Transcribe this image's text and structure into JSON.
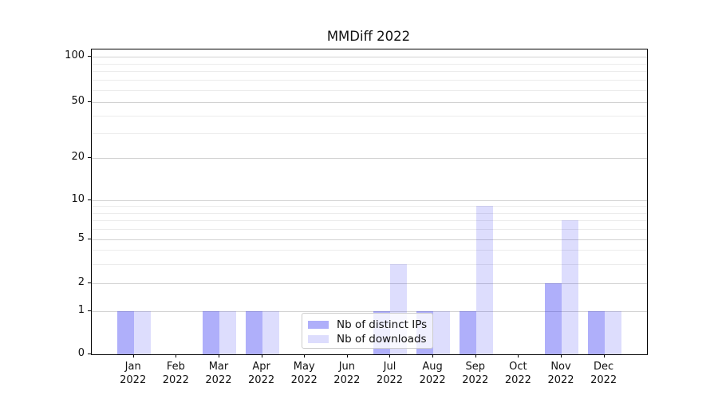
{
  "chart_data": {
    "type": "bar",
    "title": "MMDiff 2022",
    "categories": [
      {
        "month": "Jan",
        "year": "2022"
      },
      {
        "month": "Feb",
        "year": "2022"
      },
      {
        "month": "Mar",
        "year": "2022"
      },
      {
        "month": "Apr",
        "year": "2022"
      },
      {
        "month": "May",
        "year": "2022"
      },
      {
        "month": "Jun",
        "year": "2022"
      },
      {
        "month": "Jul",
        "year": "2022"
      },
      {
        "month": "Aug",
        "year": "2022"
      },
      {
        "month": "Sep",
        "year": "2022"
      },
      {
        "month": "Oct",
        "year": "2022"
      },
      {
        "month": "Nov",
        "year": "2022"
      },
      {
        "month": "Dec",
        "year": "2022"
      }
    ],
    "series": [
      {
        "name": "Nb of distinct IPs",
        "color": "rgba(25,25,240,0.35)",
        "values": [
          1,
          0,
          1,
          1,
          0,
          0,
          1,
          1,
          1,
          0,
          2,
          1
        ]
      },
      {
        "name": "Nb of downloads",
        "color": "rgba(25,25,240,0.15)",
        "values": [
          1,
          0,
          1,
          1,
          0,
          0,
          3,
          1,
          9,
          0,
          7,
          1
        ]
      }
    ],
    "xlabel": "",
    "ylabel": "",
    "yscale": "symlog",
    "ylim": [
      0,
      112
    ],
    "yticks": [
      0,
      1,
      2,
      5,
      10,
      20,
      50,
      100
    ],
    "yticks_minor": [
      3,
      4,
      6,
      7,
      8,
      9,
      30,
      40,
      60,
      70,
      80,
      90
    ],
    "grid": true,
    "legend_position": "lower center",
    "colors": {
      "grid_major": "#d2d2d2",
      "grid_minor": "#ececec",
      "spine": "#000000",
      "background": "#ffffff"
    }
  }
}
